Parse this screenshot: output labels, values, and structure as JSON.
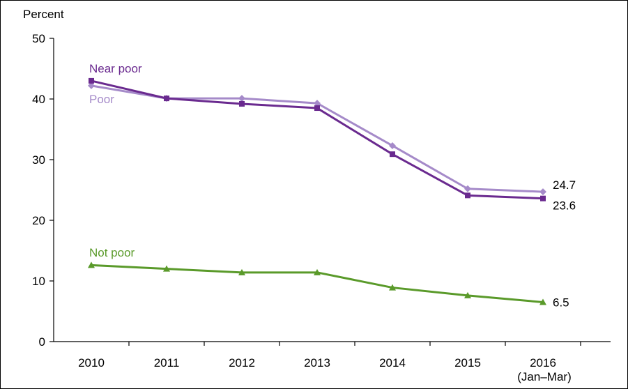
{
  "chart_data": {
    "type": "line",
    "title": "",
    "ylabel": "Percent",
    "xlabel": "",
    "ylim": [
      0,
      50
    ],
    "yticks": [
      0,
      10,
      20,
      30,
      40,
      50
    ],
    "categories": [
      "2010",
      "2011",
      "2012",
      "2013",
      "2014",
      "2015",
      "2016"
    ],
    "category_sublabels": [
      "",
      "",
      "",
      "",
      "",
      "",
      "(Jan–Mar)"
    ],
    "grid": false,
    "legend": "inline labels",
    "series": [
      {
        "name": "Poor",
        "color": "#a58ac9",
        "marker": "diamond",
        "values": [
          42.2,
          40.1,
          40.1,
          39.3,
          32.3,
          25.2,
          24.7
        ],
        "end_label": "24.7"
      },
      {
        "name": "Near poor",
        "color": "#6a2a8f",
        "marker": "square",
        "values": [
          43.0,
          40.1,
          39.2,
          38.5,
          30.9,
          24.1,
          23.6
        ],
        "end_label": "23.6"
      },
      {
        "name": "Not poor",
        "color": "#5a9a2a",
        "marker": "triangle",
        "values": [
          12.6,
          12.0,
          11.4,
          11.4,
          8.9,
          7.6,
          6.5
        ],
        "end_label": "6.5"
      }
    ]
  }
}
